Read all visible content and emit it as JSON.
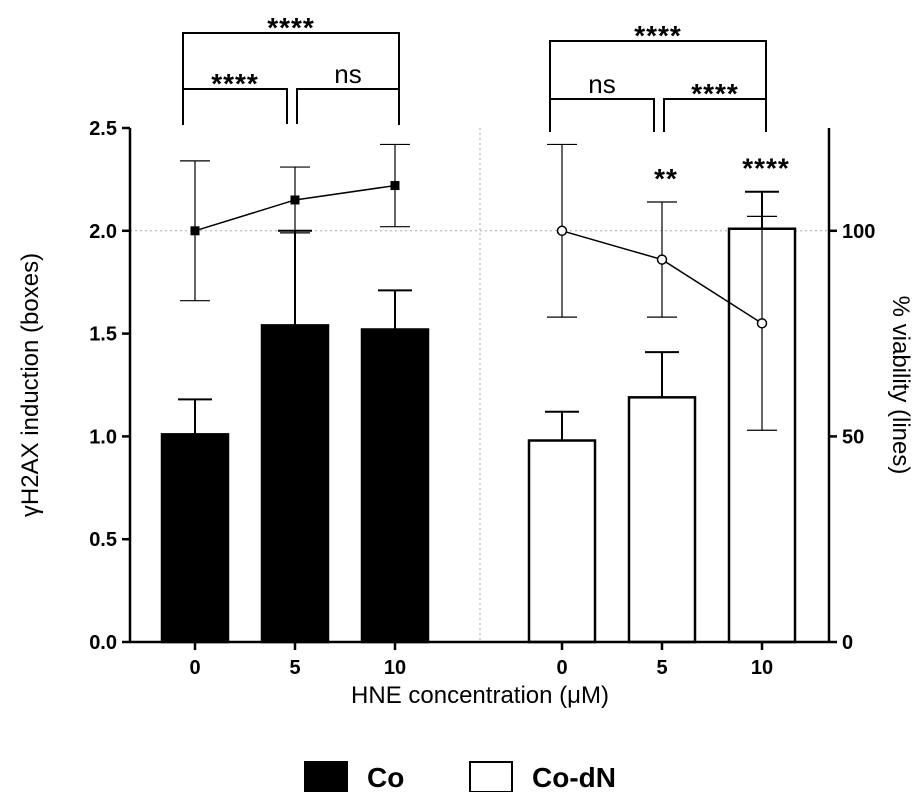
{
  "chart_data": {
    "type": "bar",
    "xlabel": "HNE concentration (μM)",
    "ylabel": "γH2AX induction (boxes)",
    "y2label": "% viability (lines)",
    "ylim": [
      0,
      2.5
    ],
    "y2lim": [
      0,
      125
    ],
    "yticks": [
      "0.0",
      "0.5",
      "1.0",
      "1.5",
      "2.0",
      "2.5"
    ],
    "y2ticks": [
      "0",
      "50",
      "100"
    ],
    "groups": [
      {
        "name": "Co",
        "fill": "#000000",
        "categories": [
          "0",
          "5",
          "10"
        ],
        "bars": [
          1.01,
          1.54,
          1.52
        ],
        "bar_err": [
          0.17,
          0.46,
          0.19
        ],
        "line": [
          100,
          107.5,
          111
        ],
        "line_err": [
          17,
          8,
          10
        ],
        "line_marker": "filled-square"
      },
      {
        "name": "Co-dN",
        "fill": "#ffffff",
        "categories": [
          "0",
          "5",
          "10"
        ],
        "bars": [
          0.98,
          1.19,
          2.01
        ],
        "bar_err": [
          0.14,
          0.22,
          0.18
        ],
        "line": [
          100,
          93,
          77.5
        ],
        "line_err": [
          21,
          14,
          26
        ],
        "line_marker": "open-circle"
      }
    ],
    "significance": [
      {
        "group": 0,
        "from": 0,
        "to": 2,
        "label": "****"
      },
      {
        "group": 0,
        "from": 0,
        "to": 1,
        "label": "****"
      },
      {
        "group": 0,
        "from": 1,
        "to": 2,
        "label": "ns"
      },
      {
        "group": 1,
        "from": 0,
        "to": 2,
        "label": "****"
      },
      {
        "group": 1,
        "from": 0,
        "to": 1,
        "label": "ns"
      },
      {
        "group": 1,
        "from": 1,
        "to": 2,
        "label": "****"
      }
    ],
    "point_labels": [
      {
        "group": 1,
        "index": 1,
        "label": "**"
      },
      {
        "group": 1,
        "index": 2,
        "label": "****"
      }
    ],
    "reference_line_y2": 100,
    "legend": [
      {
        "label": "Co",
        "fill": "#000000"
      },
      {
        "label": "Co-dN",
        "fill": "#ffffff"
      }
    ],
    "legend_position": "bottom"
  }
}
